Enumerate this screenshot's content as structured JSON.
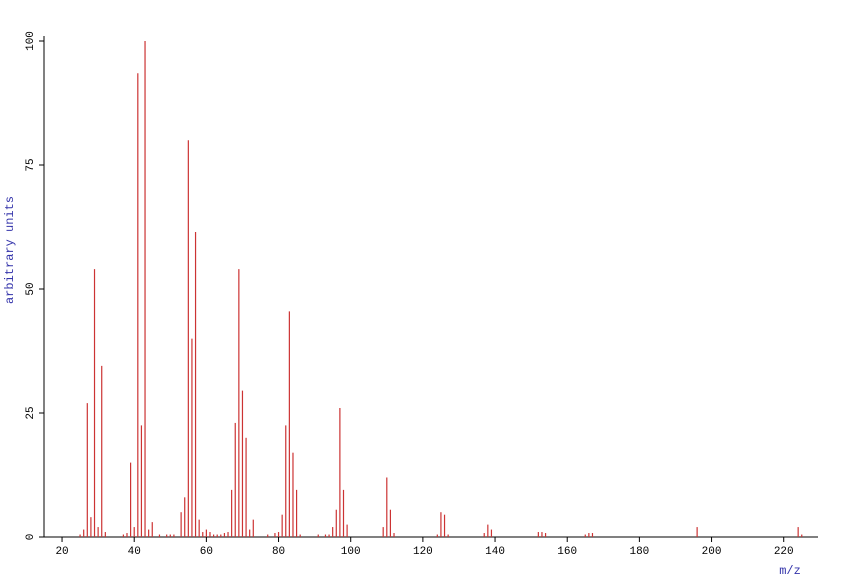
{
  "chart_data": {
    "type": "stem",
    "x_label": "m/z",
    "y_label": "arbitrary units",
    "color": "#cc3333",
    "xlim": [
      15,
      229.5
    ],
    "ylim": [
      0,
      100
    ],
    "xticks": [
      20,
      40,
      60,
      80,
      100,
      120,
      140,
      160,
      180,
      200,
      220
    ],
    "yticks": [
      0,
      25,
      50,
      75,
      100
    ],
    "x": [
      25,
      26,
      27,
      28,
      29,
      30,
      31,
      32,
      37,
      38,
      39,
      40,
      41,
      42,
      43,
      44,
      45,
      47,
      49,
      50,
      51,
      53,
      54,
      55,
      56,
      57,
      58,
      59,
      60,
      61,
      62,
      63,
      64,
      65,
      66,
      67,
      68,
      69,
      70,
      71,
      72,
      73,
      77,
      79,
      80,
      81,
      82,
      83,
      84,
      85,
      86,
      91,
      93,
      94,
      95,
      96,
      97,
      98,
      99,
      109,
      110,
      111,
      112,
      124,
      125,
      126,
      127,
      137,
      138,
      139,
      152,
      153,
      154,
      165,
      166,
      167,
      196,
      224,
      225
    ],
    "values": [
      0.5,
      1.5,
      27,
      4,
      54,
      2,
      34.5,
      1,
      0.5,
      0.8,
      15,
      2,
      93.5,
      22.5,
      100,
      1.5,
      3,
      0.5,
      0.5,
      0.5,
      0.5,
      5,
      8,
      80,
      40,
      61.5,
      3.5,
      1,
      1.5,
      1,
      0.5,
      0.5,
      0.5,
      0.8,
      1,
      9.5,
      23,
      54,
      29.5,
      20,
      1.5,
      3.5,
      0.5,
      0.8,
      1,
      4.5,
      22.5,
      45.5,
      17,
      9.5,
      0.5,
      0.5,
      0.5,
      0.5,
      2,
      5.5,
      26,
      9.5,
      2.5,
      2,
      12,
      5.5,
      0.8,
      0.5,
      5,
      4.5,
      0.5,
      0.8,
      2.5,
      1.5,
      1,
      1,
      0.8,
      0.5,
      0.8,
      0.8,
      2,
      2,
      0.5
    ]
  }
}
